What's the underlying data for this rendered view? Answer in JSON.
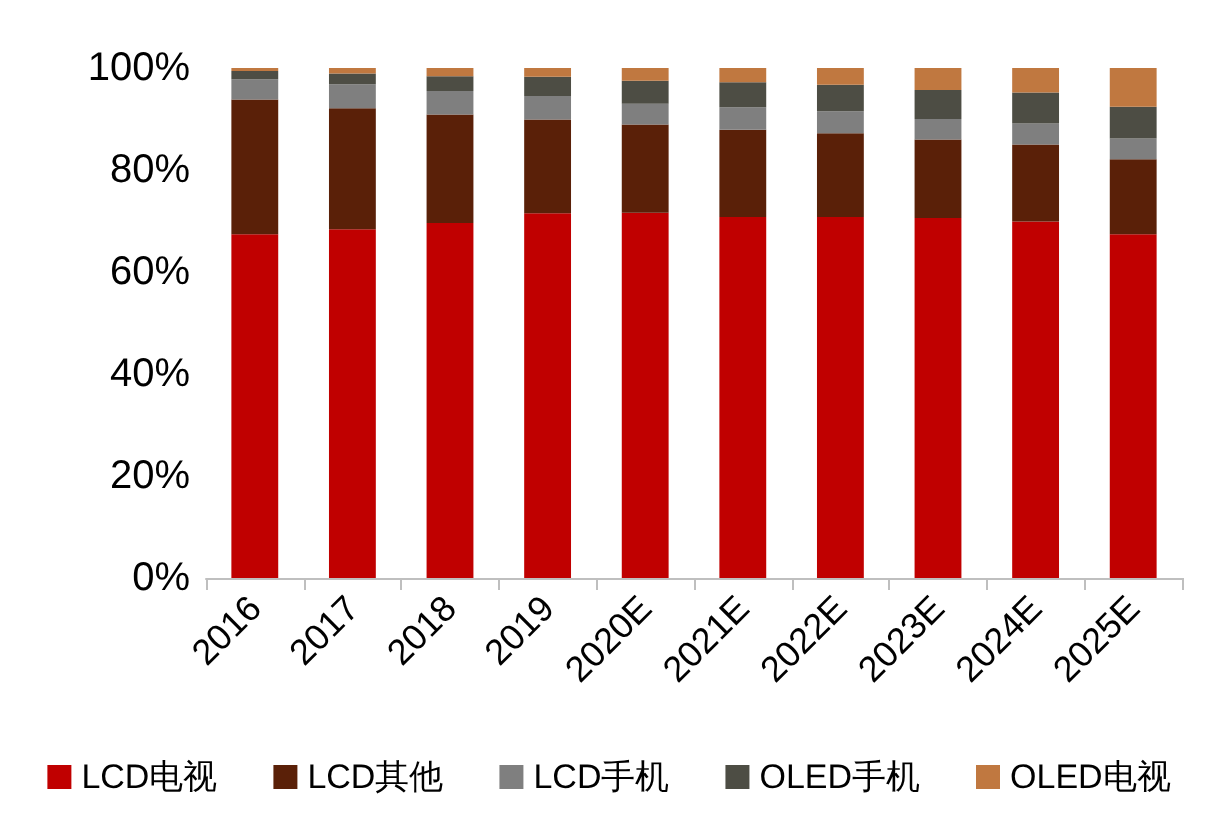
{
  "chart_data": {
    "type": "bar",
    "stacked": true,
    "categories": [
      "2016",
      "2017",
      "2018",
      "2019",
      "2020E",
      "2021E",
      "2022E",
      "2023E",
      "2024E",
      "2025E"
    ],
    "series": [
      {
        "name": "LCD电视",
        "color": "#c00000",
        "values": [
          67.4,
          68.4,
          69.6,
          71.5,
          71.6,
          70.8,
          70.8,
          70.6,
          69.9,
          67.4
        ]
      },
      {
        "name": "LCD其他",
        "color": "#5a2008",
        "values": [
          26.4,
          23.7,
          21.3,
          18.4,
          17.3,
          17.1,
          16.4,
          15.4,
          15.1,
          14.7
        ]
      },
      {
        "name": "LCD手机",
        "color": "#7f7f7f",
        "values": [
          4.0,
          4.7,
          4.6,
          4.6,
          4.1,
          4.4,
          4.3,
          4.0,
          4.1,
          4.1
        ]
      },
      {
        "name": "OLED手机",
        "color": "#4d4d44",
        "values": [
          1.6,
          2.1,
          2.9,
          3.8,
          4.5,
          4.9,
          5.2,
          5.7,
          6.1,
          6.2
        ]
      },
      {
        "name": "OLED电视",
        "color": "#c07840",
        "values": [
          0.6,
          1.1,
          1.6,
          1.7,
          2.5,
          2.8,
          3.3,
          4.3,
          4.8,
          7.6
        ]
      }
    ],
    "ylim": [
      0,
      100
    ],
    "yticks": [
      {
        "value": 0,
        "label": "0%"
      },
      {
        "value": 20,
        "label": "20%"
      },
      {
        "value": 40,
        "label": "40%"
      },
      {
        "value": 60,
        "label": "60%"
      },
      {
        "value": 80,
        "label": "80%"
      },
      {
        "value": 100,
        "label": "100%"
      }
    ],
    "grid": false,
    "legend": "bottom"
  }
}
